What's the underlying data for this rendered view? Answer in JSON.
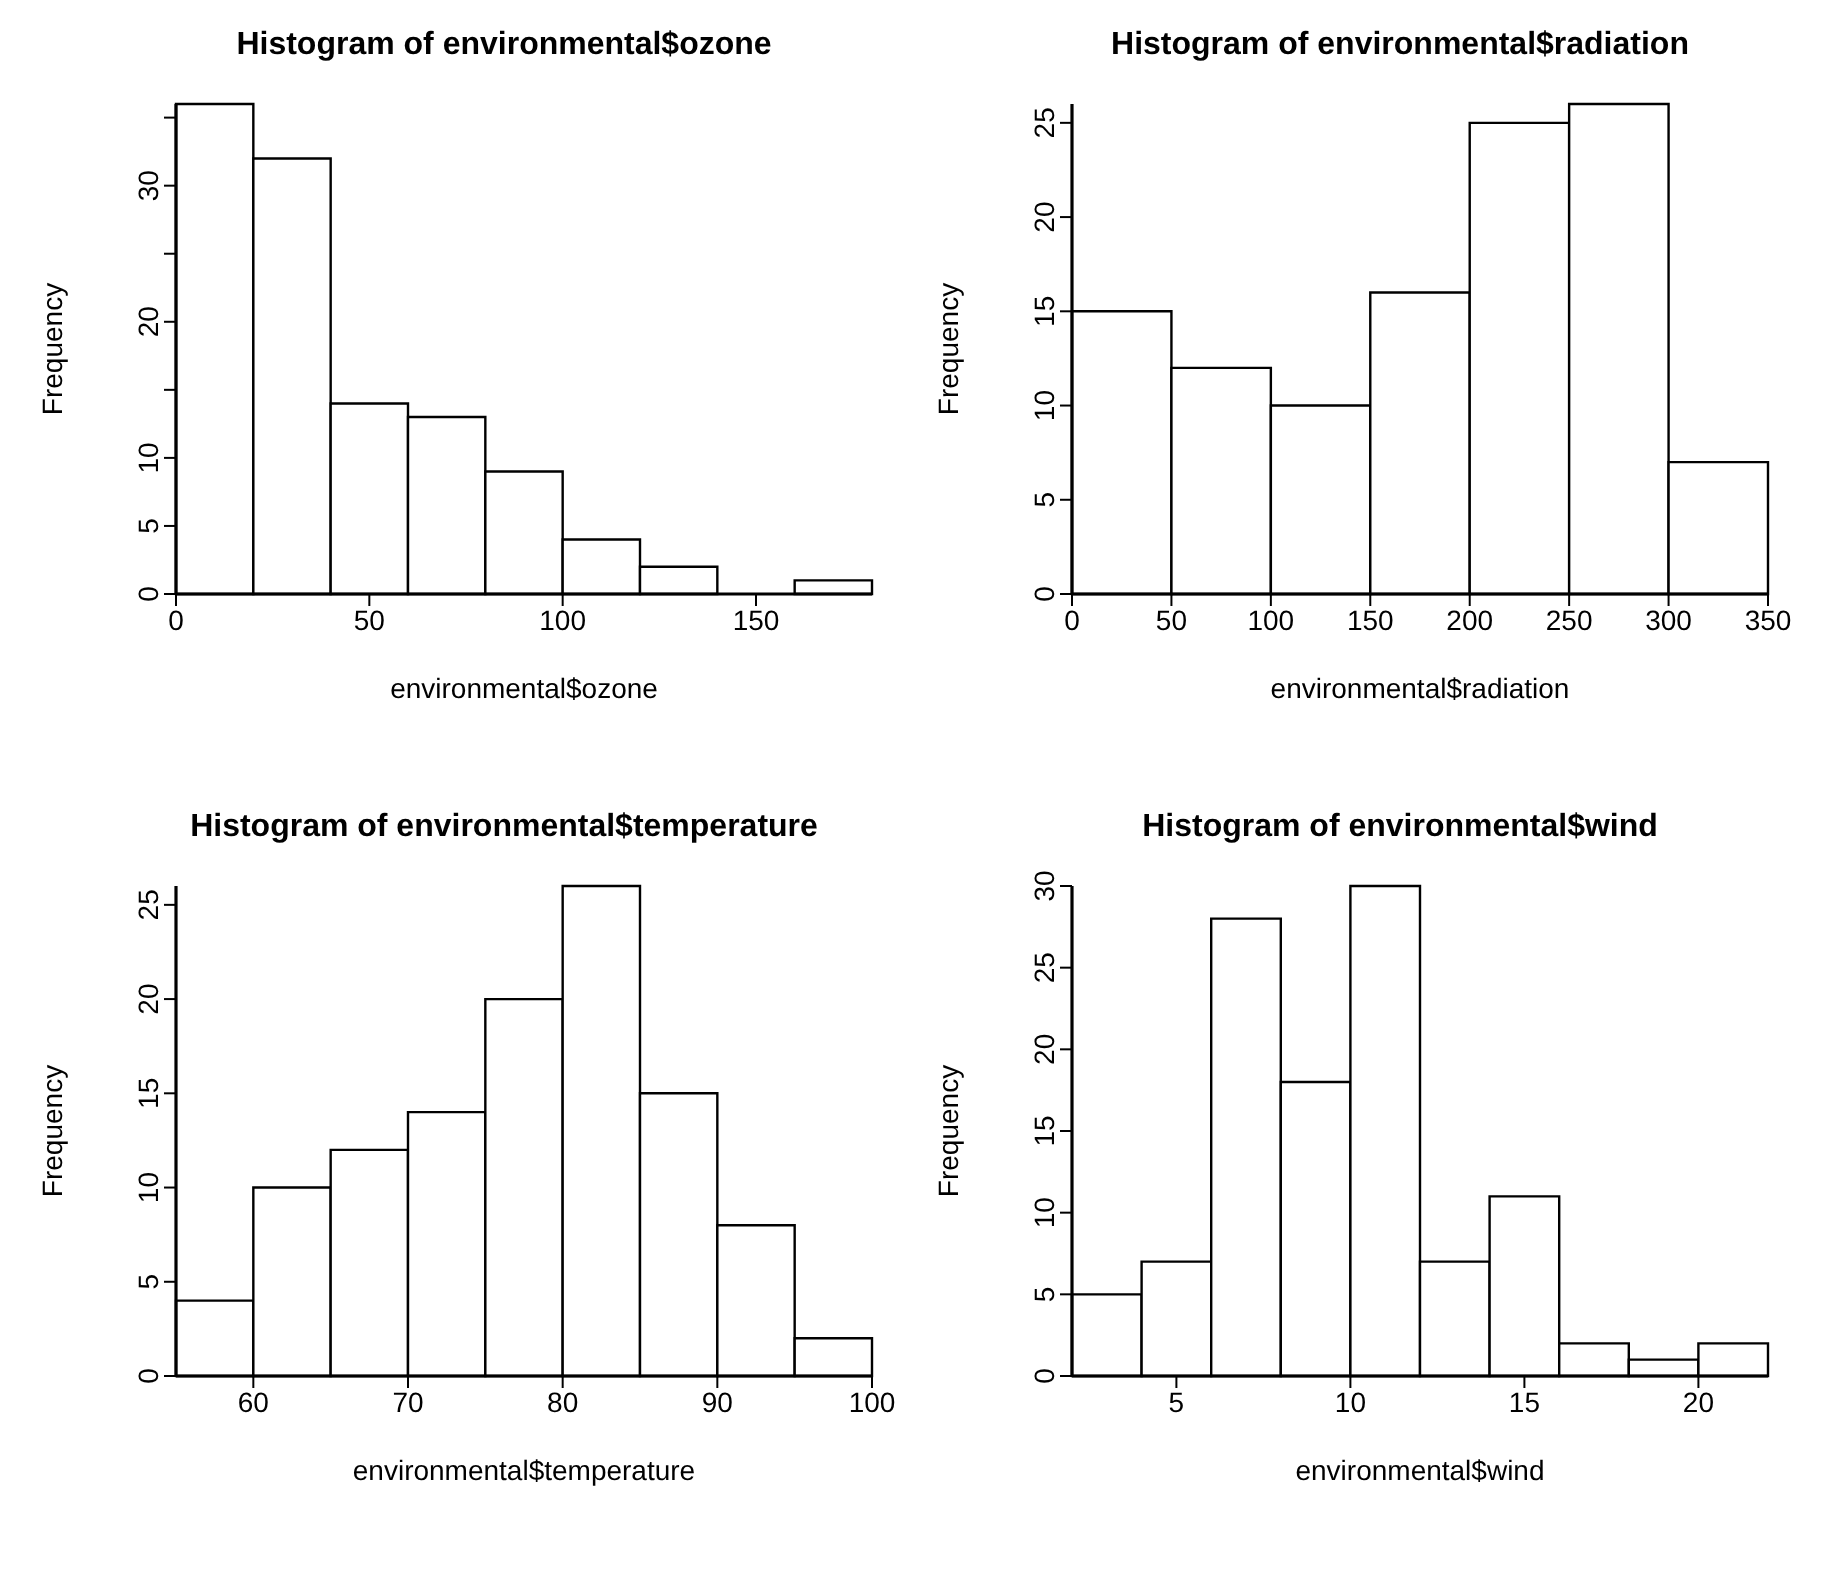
{
  "chart_data": [
    {
      "type": "histogram",
      "title": "Histogram of environmental$ozone",
      "xlabel": "environmental$ozone",
      "ylabel": "Frequency",
      "bins": [
        0,
        20,
        40,
        60,
        80,
        100,
        120,
        140,
        160,
        180
      ],
      "values": [
        36,
        32,
        14,
        13,
        9,
        4,
        2,
        0,
        1
      ],
      "xlim": [
        0,
        180
      ],
      "xticks": [
        0,
        50,
        100,
        150
      ],
      "ylim": [
        0,
        36
      ],
      "yticks": [
        0,
        5,
        10,
        {
          "value": 15,
          "label": null
        },
        20,
        {
          "value": 25,
          "label": null
        },
        30,
        {
          "value": 35,
          "label": null
        }
      ],
      "color": "#ffffff"
    },
    {
      "type": "histogram",
      "title": "Histogram of environmental$radiation",
      "xlabel": "environmental$radiation",
      "ylabel": "Frequency",
      "bins": [
        0,
        50,
        100,
        150,
        200,
        250,
        300,
        350
      ],
      "values": [
        15,
        12,
        10,
        16,
        25,
        26,
        7
      ],
      "xlim": [
        0,
        350
      ],
      "xticks": [
        0,
        50,
        100,
        150,
        200,
        250,
        300,
        350
      ],
      "ylim": [
        0,
        26
      ],
      "yticks": [
        0,
        5,
        10,
        15,
        20,
        25
      ],
      "color": "#ffffff"
    },
    {
      "type": "histogram",
      "title": "Histogram of environmental$temperature",
      "xlabel": "environmental$temperature",
      "ylabel": "Frequency",
      "bins": [
        55,
        60,
        65,
        70,
        75,
        80,
        85,
        90,
        95,
        100
      ],
      "values": [
        4,
        10,
        12,
        14,
        20,
        26,
        15,
        8,
        2
      ],
      "xlim": [
        55,
        100
      ],
      "xticks": [
        60,
        70,
        80,
        90,
        100
      ],
      "ylim": [
        0,
        26
      ],
      "yticks": [
        0,
        5,
        10,
        15,
        20,
        25
      ],
      "color": "#ffffff"
    },
    {
      "type": "histogram",
      "title": "Histogram of environmental$wind",
      "xlabel": "environmental$wind",
      "ylabel": "Frequency",
      "bins": [
        2,
        4,
        6,
        8,
        10,
        12,
        14,
        16,
        18,
        20,
        22
      ],
      "values": [
        5,
        7,
        28,
        18,
        30,
        7,
        11,
        2,
        1,
        2
      ],
      "xlim": [
        2,
        22
      ],
      "xticks": [
        5,
        10,
        15,
        20
      ],
      "ylim": [
        0,
        30
      ],
      "yticks": [
        0,
        5,
        10,
        15,
        20,
        25,
        30
      ],
      "color": "#ffffff"
    }
  ]
}
